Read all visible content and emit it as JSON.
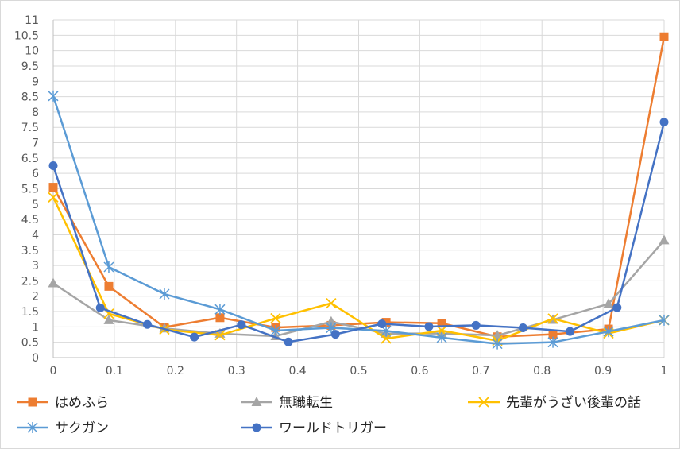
{
  "chart_data": {
    "type": "line",
    "xlim": [
      0,
      1
    ],
    "ylim": [
      0,
      11
    ],
    "x_ticks": [
      "0",
      "0.1",
      "0.2",
      "0.3",
      "0.4",
      "0.5",
      "0.6",
      "0.7",
      "0.8",
      "0.9",
      "1"
    ],
    "y_ticks": [
      "0",
      "0.5",
      "1",
      "1.5",
      "2",
      "2.5",
      "3",
      "3.5",
      "4",
      "4.5",
      "5",
      "5.5",
      "6",
      "6.5",
      "7",
      "7.5",
      "8",
      "8.5",
      "9",
      "9.5",
      "10",
      "10.5",
      "11"
    ],
    "grid": true,
    "legend_position": "bottom",
    "series": [
      {
        "name": "はめふら",
        "color": "#ed7d31",
        "marker": "square",
        "x": [
          0,
          0.091,
          0.182,
          0.273,
          0.364,
          0.455,
          0.545,
          0.636,
          0.727,
          0.818,
          0.909,
          1.0
        ],
        "y": [
          5.55,
          2.32,
          0.99,
          1.3,
          0.98,
          1.05,
          1.15,
          1.12,
          0.68,
          0.76,
          0.93,
          10.45
        ]
      },
      {
        "name": "無職転生",
        "color": "#a5a5a5",
        "marker": "triangle",
        "x": [
          0,
          0.091,
          0.182,
          0.273,
          0.364,
          0.455,
          0.545,
          0.636,
          0.727,
          0.818,
          0.909,
          1.0
        ],
        "y": [
          2.42,
          1.22,
          0.95,
          0.78,
          0.7,
          1.17,
          0.78,
          0.79,
          0.72,
          1.23,
          1.75,
          3.82
        ]
      },
      {
        "name": "先輩がうざい後輩の話",
        "color": "#ffc000",
        "marker": "x",
        "x": [
          0,
          0.091,
          0.182,
          0.273,
          0.364,
          0.455,
          0.545,
          0.636,
          0.727,
          0.818,
          0.909,
          1.0
        ],
        "y": [
          5.22,
          1.43,
          0.92,
          0.73,
          1.28,
          1.77,
          0.62,
          0.88,
          0.55,
          1.27,
          0.79,
          1.22
        ]
      },
      {
        "name": "サクガン",
        "color": "#5b9bd5",
        "marker": "asterisk",
        "x": [
          0,
          0.091,
          0.182,
          0.273,
          0.364,
          0.455,
          0.545,
          0.636,
          0.727,
          0.818,
          0.909,
          1.0
        ],
        "y": [
          8.52,
          2.95,
          2.07,
          1.57,
          0.88,
          0.97,
          0.87,
          0.65,
          0.45,
          0.5,
          0.85,
          1.22
        ]
      },
      {
        "name": "ワールドトリガー",
        "color": "#4472c4",
        "marker": "circle",
        "x": [
          0,
          0.077,
          0.154,
          0.231,
          0.308,
          0.385,
          0.462,
          0.538,
          0.615,
          0.692,
          0.769,
          0.846,
          0.923,
          1.0
        ],
        "y": [
          6.25,
          1.62,
          1.08,
          0.67,
          1.07,
          0.51,
          0.76,
          1.1,
          1.01,
          1.05,
          0.97,
          0.85,
          1.63,
          7.67
        ]
      }
    ]
  }
}
